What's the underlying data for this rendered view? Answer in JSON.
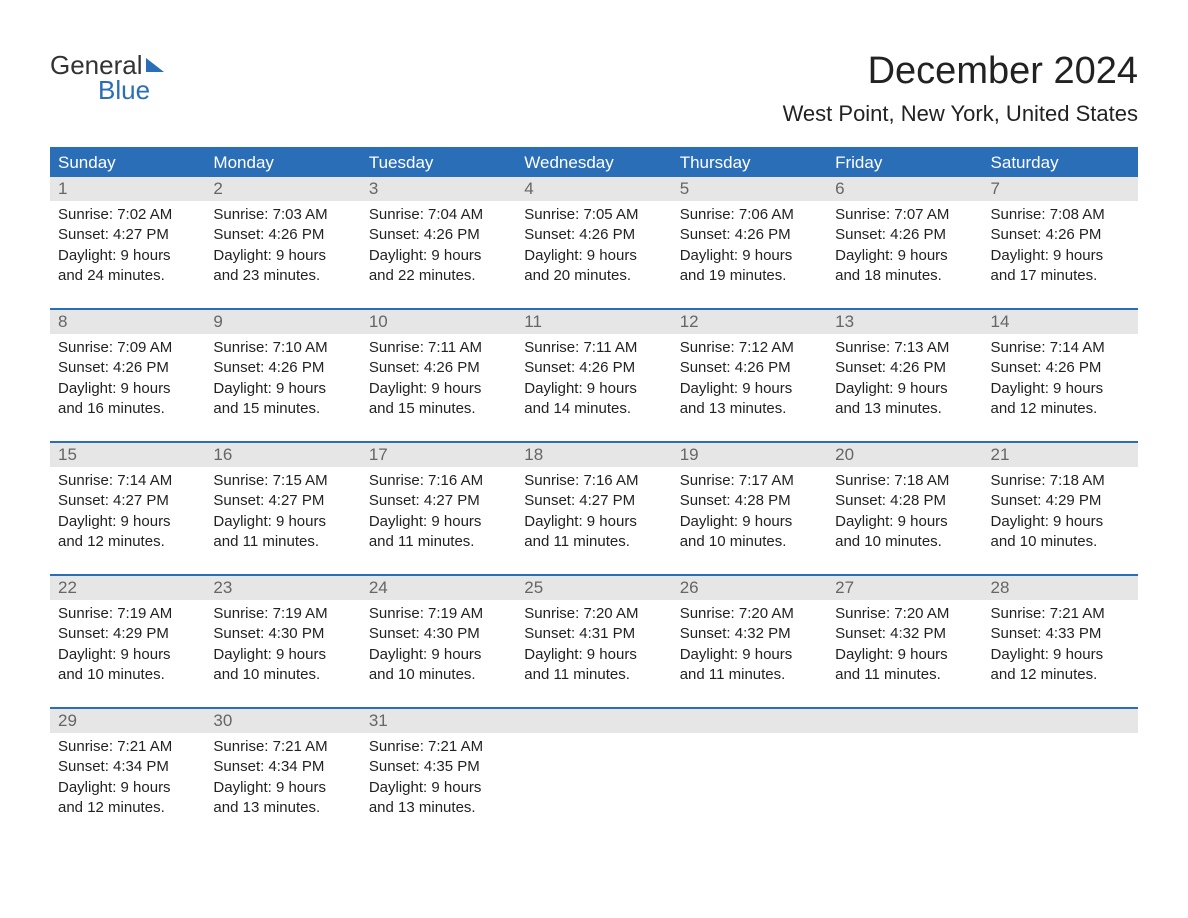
{
  "logo": {
    "word1": "General",
    "word2": "Blue",
    "text_color": "#333333",
    "accent_color": "#2a6eb8"
  },
  "title": {
    "month_year": "December 2024",
    "location": "West Point, New York, United States"
  },
  "colors": {
    "header_bg": "#2a6eb8",
    "header_text": "#ffffff",
    "daynum_bg": "#e6e6e6",
    "daynum_text": "#666666",
    "body_text": "#222222",
    "divider": "#2a6eb8"
  },
  "day_headers": [
    "Sunday",
    "Monday",
    "Tuesday",
    "Wednesday",
    "Thursday",
    "Friday",
    "Saturday"
  ],
  "weeks": [
    [
      {
        "num": "1",
        "sunrise": "Sunrise: 7:02 AM",
        "sunset": "Sunset: 4:27 PM",
        "daylight1": "Daylight: 9 hours",
        "daylight2": "and 24 minutes."
      },
      {
        "num": "2",
        "sunrise": "Sunrise: 7:03 AM",
        "sunset": "Sunset: 4:26 PM",
        "daylight1": "Daylight: 9 hours",
        "daylight2": "and 23 minutes."
      },
      {
        "num": "3",
        "sunrise": "Sunrise: 7:04 AM",
        "sunset": "Sunset: 4:26 PM",
        "daylight1": "Daylight: 9 hours",
        "daylight2": "and 22 minutes."
      },
      {
        "num": "4",
        "sunrise": "Sunrise: 7:05 AM",
        "sunset": "Sunset: 4:26 PM",
        "daylight1": "Daylight: 9 hours",
        "daylight2": "and 20 minutes."
      },
      {
        "num": "5",
        "sunrise": "Sunrise: 7:06 AM",
        "sunset": "Sunset: 4:26 PM",
        "daylight1": "Daylight: 9 hours",
        "daylight2": "and 19 minutes."
      },
      {
        "num": "6",
        "sunrise": "Sunrise: 7:07 AM",
        "sunset": "Sunset: 4:26 PM",
        "daylight1": "Daylight: 9 hours",
        "daylight2": "and 18 minutes."
      },
      {
        "num": "7",
        "sunrise": "Sunrise: 7:08 AM",
        "sunset": "Sunset: 4:26 PM",
        "daylight1": "Daylight: 9 hours",
        "daylight2": "and 17 minutes."
      }
    ],
    [
      {
        "num": "8",
        "sunrise": "Sunrise: 7:09 AM",
        "sunset": "Sunset: 4:26 PM",
        "daylight1": "Daylight: 9 hours",
        "daylight2": "and 16 minutes."
      },
      {
        "num": "9",
        "sunrise": "Sunrise: 7:10 AM",
        "sunset": "Sunset: 4:26 PM",
        "daylight1": "Daylight: 9 hours",
        "daylight2": "and 15 minutes."
      },
      {
        "num": "10",
        "sunrise": "Sunrise: 7:11 AM",
        "sunset": "Sunset: 4:26 PM",
        "daylight1": "Daylight: 9 hours",
        "daylight2": "and 15 minutes."
      },
      {
        "num": "11",
        "sunrise": "Sunrise: 7:11 AM",
        "sunset": "Sunset: 4:26 PM",
        "daylight1": "Daylight: 9 hours",
        "daylight2": "and 14 minutes."
      },
      {
        "num": "12",
        "sunrise": "Sunrise: 7:12 AM",
        "sunset": "Sunset: 4:26 PM",
        "daylight1": "Daylight: 9 hours",
        "daylight2": "and 13 minutes."
      },
      {
        "num": "13",
        "sunrise": "Sunrise: 7:13 AM",
        "sunset": "Sunset: 4:26 PM",
        "daylight1": "Daylight: 9 hours",
        "daylight2": "and 13 minutes."
      },
      {
        "num": "14",
        "sunrise": "Sunrise: 7:14 AM",
        "sunset": "Sunset: 4:26 PM",
        "daylight1": "Daylight: 9 hours",
        "daylight2": "and 12 minutes."
      }
    ],
    [
      {
        "num": "15",
        "sunrise": "Sunrise: 7:14 AM",
        "sunset": "Sunset: 4:27 PM",
        "daylight1": "Daylight: 9 hours",
        "daylight2": "and 12 minutes."
      },
      {
        "num": "16",
        "sunrise": "Sunrise: 7:15 AM",
        "sunset": "Sunset: 4:27 PM",
        "daylight1": "Daylight: 9 hours",
        "daylight2": "and 11 minutes."
      },
      {
        "num": "17",
        "sunrise": "Sunrise: 7:16 AM",
        "sunset": "Sunset: 4:27 PM",
        "daylight1": "Daylight: 9 hours",
        "daylight2": "and 11 minutes."
      },
      {
        "num": "18",
        "sunrise": "Sunrise: 7:16 AM",
        "sunset": "Sunset: 4:27 PM",
        "daylight1": "Daylight: 9 hours",
        "daylight2": "and 11 minutes."
      },
      {
        "num": "19",
        "sunrise": "Sunrise: 7:17 AM",
        "sunset": "Sunset: 4:28 PM",
        "daylight1": "Daylight: 9 hours",
        "daylight2": "and 10 minutes."
      },
      {
        "num": "20",
        "sunrise": "Sunrise: 7:18 AM",
        "sunset": "Sunset: 4:28 PM",
        "daylight1": "Daylight: 9 hours",
        "daylight2": "and 10 minutes."
      },
      {
        "num": "21",
        "sunrise": "Sunrise: 7:18 AM",
        "sunset": "Sunset: 4:29 PM",
        "daylight1": "Daylight: 9 hours",
        "daylight2": "and 10 minutes."
      }
    ],
    [
      {
        "num": "22",
        "sunrise": "Sunrise: 7:19 AM",
        "sunset": "Sunset: 4:29 PM",
        "daylight1": "Daylight: 9 hours",
        "daylight2": "and 10 minutes."
      },
      {
        "num": "23",
        "sunrise": "Sunrise: 7:19 AM",
        "sunset": "Sunset: 4:30 PM",
        "daylight1": "Daylight: 9 hours",
        "daylight2": "and 10 minutes."
      },
      {
        "num": "24",
        "sunrise": "Sunrise: 7:19 AM",
        "sunset": "Sunset: 4:30 PM",
        "daylight1": "Daylight: 9 hours",
        "daylight2": "and 10 minutes."
      },
      {
        "num": "25",
        "sunrise": "Sunrise: 7:20 AM",
        "sunset": "Sunset: 4:31 PM",
        "daylight1": "Daylight: 9 hours",
        "daylight2": "and 11 minutes."
      },
      {
        "num": "26",
        "sunrise": "Sunrise: 7:20 AM",
        "sunset": "Sunset: 4:32 PM",
        "daylight1": "Daylight: 9 hours",
        "daylight2": "and 11 minutes."
      },
      {
        "num": "27",
        "sunrise": "Sunrise: 7:20 AM",
        "sunset": "Sunset: 4:32 PM",
        "daylight1": "Daylight: 9 hours",
        "daylight2": "and 11 minutes."
      },
      {
        "num": "28",
        "sunrise": "Sunrise: 7:21 AM",
        "sunset": "Sunset: 4:33 PM",
        "daylight1": "Daylight: 9 hours",
        "daylight2": "and 12 minutes."
      }
    ],
    [
      {
        "num": "29",
        "sunrise": "Sunrise: 7:21 AM",
        "sunset": "Sunset: 4:34 PM",
        "daylight1": "Daylight: 9 hours",
        "daylight2": "and 12 minutes."
      },
      {
        "num": "30",
        "sunrise": "Sunrise: 7:21 AM",
        "sunset": "Sunset: 4:34 PM",
        "daylight1": "Daylight: 9 hours",
        "daylight2": "and 13 minutes."
      },
      {
        "num": "31",
        "sunrise": "Sunrise: 7:21 AM",
        "sunset": "Sunset: 4:35 PM",
        "daylight1": "Daylight: 9 hours",
        "daylight2": "and 13 minutes."
      },
      null,
      null,
      null,
      null
    ]
  ]
}
